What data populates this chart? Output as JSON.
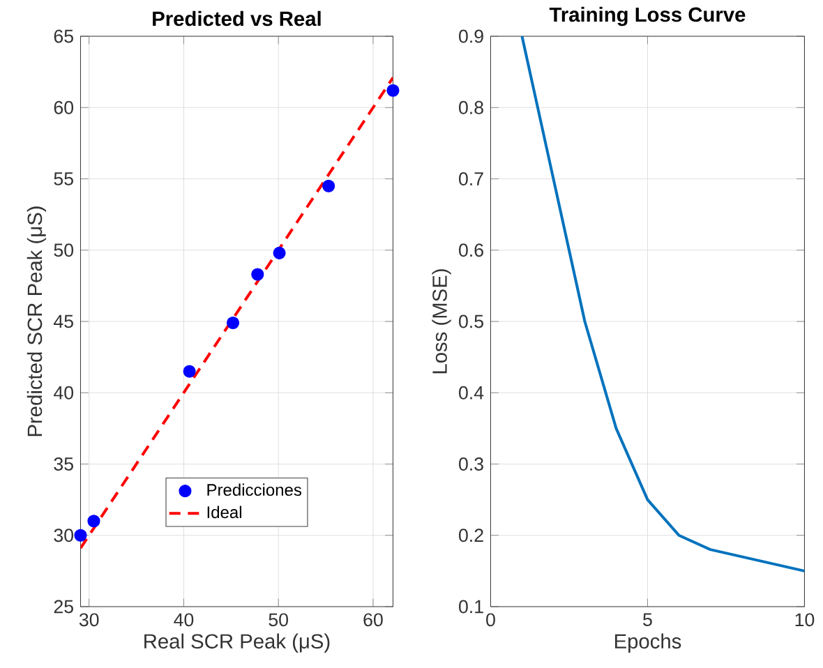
{
  "chart_data": [
    {
      "type": "scatter",
      "title": "Predicted vs Real",
      "xlabel": "Real SCR Peak (μS)",
      "ylabel": "Predicted SCR Peak (μS)",
      "xlim": [
        29.1,
        62.1
      ],
      "ylim": [
        25,
        65
      ],
      "xticks": [
        30,
        40,
        50,
        60
      ],
      "yticks": [
        25,
        30,
        35,
        40,
        45,
        50,
        55,
        60,
        65
      ],
      "grid": true,
      "legend": "bottom",
      "series": [
        {
          "name": "Predicciones",
          "type": "scatter",
          "color": "#0000ff",
          "marker": "circle",
          "x": [
            29.1,
            30.5,
            40.6,
            45.2,
            47.8,
            50.1,
            55.3,
            62.1
          ],
          "values": [
            30.0,
            31.0,
            41.5,
            44.9,
            48.3,
            49.8,
            54.5,
            61.2
          ]
        },
        {
          "name": "Ideal",
          "type": "line",
          "color": "#ff0000",
          "line_style": "dashed",
          "marker": "none",
          "x": [
            29.1,
            62.1
          ],
          "values": [
            29.1,
            62.1
          ]
        }
      ]
    },
    {
      "type": "line",
      "title": "Training Loss Curve",
      "xlabel": "Epochs",
      "ylabel": "Loss (MSE)",
      "xlim": [
        0,
        10
      ],
      "ylim": [
        0.1,
        0.9
      ],
      "xticks": [
        0,
        5,
        10
      ],
      "yticks": [
        0.1,
        0.2,
        0.3,
        0.4,
        0.5,
        0.6,
        0.7,
        0.8,
        0.9
      ],
      "grid": true,
      "series": [
        {
          "color": "#0072bd",
          "x": [
            1,
            2,
            3,
            4,
            5,
            6,
            7,
            8,
            9,
            10
          ],
          "values": [
            0.9,
            0.7,
            0.5,
            0.35,
            0.25,
            0.2,
            0.18,
            0.17,
            0.16,
            0.15
          ]
        }
      ]
    }
  ]
}
